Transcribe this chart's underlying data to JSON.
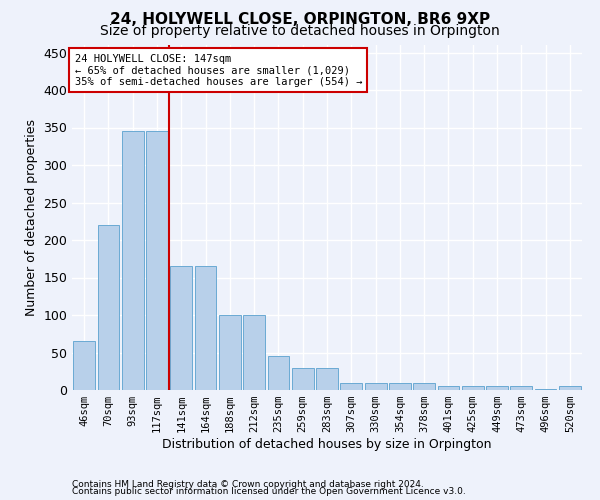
{
  "title": "24, HOLYWELL CLOSE, ORPINGTON, BR6 9XP",
  "subtitle": "Size of property relative to detached houses in Orpington",
  "xlabel": "Distribution of detached houses by size in Orpington",
  "ylabel": "Number of detached properties",
  "categories": [
    "46sqm",
    "70sqm",
    "93sqm",
    "117sqm",
    "141sqm",
    "164sqm",
    "188sqm",
    "212sqm",
    "235sqm",
    "259sqm",
    "283sqm",
    "307sqm",
    "330sqm",
    "354sqm",
    "378sqm",
    "401sqm",
    "425sqm",
    "449sqm",
    "473sqm",
    "496sqm",
    "520sqm"
  ],
  "values": [
    65,
    220,
    345,
    345,
    165,
    165,
    100,
    100,
    45,
    30,
    30,
    10,
    10,
    10,
    10,
    5,
    5,
    5,
    5,
    2,
    5
  ],
  "bar_color": "#b8d0ea",
  "bar_edge_color": "#6aaad4",
  "vline_color": "#cc0000",
  "vline_pos": 3.5,
  "annotation_box_text": "24 HOLYWELL CLOSE: 147sqm\n← 65% of detached houses are smaller (1,029)\n35% of semi-detached houses are larger (554) →",
  "annotation_box_color": "#cc0000",
  "annotation_box_fill": "#ffffff",
  "ylim": [
    0,
    460
  ],
  "yticks": [
    0,
    50,
    100,
    150,
    200,
    250,
    300,
    350,
    400,
    450
  ],
  "footer1": "Contains HM Land Registry data © Crown copyright and database right 2024.",
  "footer2": "Contains public sector information licensed under the Open Government Licence v3.0.",
  "bg_color": "#eef2fb",
  "grid_color": "#ffffff",
  "title_fontsize": 11,
  "subtitle_fontsize": 10,
  "ylabel_fontsize": 9,
  "xlabel_fontsize": 9,
  "tick_fontsize": 7.5,
  "ann_fontsize": 7.5,
  "footer_fontsize": 6.5
}
